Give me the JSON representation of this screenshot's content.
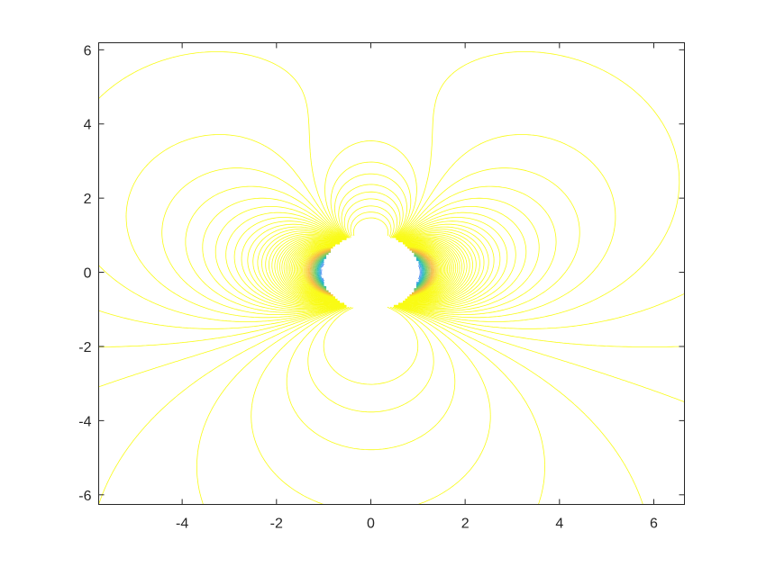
{
  "chart_data": {
    "type": "contour",
    "title": "",
    "xlabel": "",
    "ylabel": "",
    "xlim": [
      -5.77,
      6.65
    ],
    "ylim": [
      -6.26,
      6.19
    ],
    "xticks": [
      "-4",
      "-2",
      "0",
      "2",
      "4",
      "6"
    ],
    "yticks": [
      "-6",
      "-4",
      "-2",
      "0",
      "2",
      "4",
      "6"
    ],
    "xtick_values": [
      -4,
      -2,
      0,
      2,
      4,
      6
    ],
    "ytick_values": [
      -6,
      -4,
      -2,
      0,
      2,
      4,
      6
    ],
    "excluded_region": {
      "shape": "circle",
      "center": [
        0,
        0
      ],
      "radius": 1
    },
    "colormap": [
      "#3e26a8",
      "#2e87f7",
      "#18b9b4",
      "#83cb5a",
      "#f7b93c",
      "#f9fb15"
    ],
    "grid": false,
    "legend": "none"
  }
}
